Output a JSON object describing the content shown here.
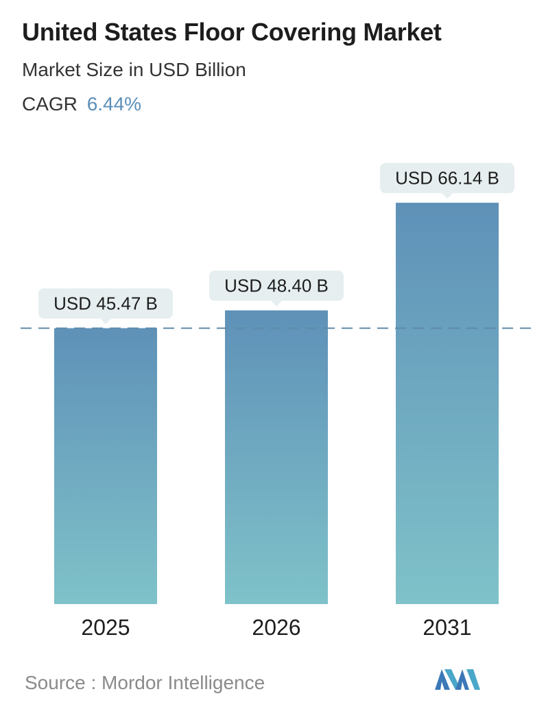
{
  "header": {
    "title": "United States Floor Covering Market",
    "subtitle": "Market Size in USD Billion",
    "cagr_label": "CAGR",
    "cagr_value": "6.44%"
  },
  "chart_data": {
    "type": "bar",
    "categories": [
      "2025",
      "2026",
      "2031"
    ],
    "values": [
      45.47,
      48.4,
      66.14
    ],
    "data_labels": [
      "USD 45.47 B",
      "USD 48.40 B",
      "USD 66.14 B"
    ],
    "unit": "USD Billion",
    "reference_line": 45.47,
    "grid": false,
    "colors": {
      "bar_top": "#5f91b8",
      "bar_bottom": "#7fc2c9",
      "label_bg": "#e6eeef",
      "dash": "#5e8aa8"
    }
  },
  "footer": {
    "source": "Source :  Mordor Intelligence",
    "logo_icon": "mordor-intelligence-logo-icon"
  }
}
